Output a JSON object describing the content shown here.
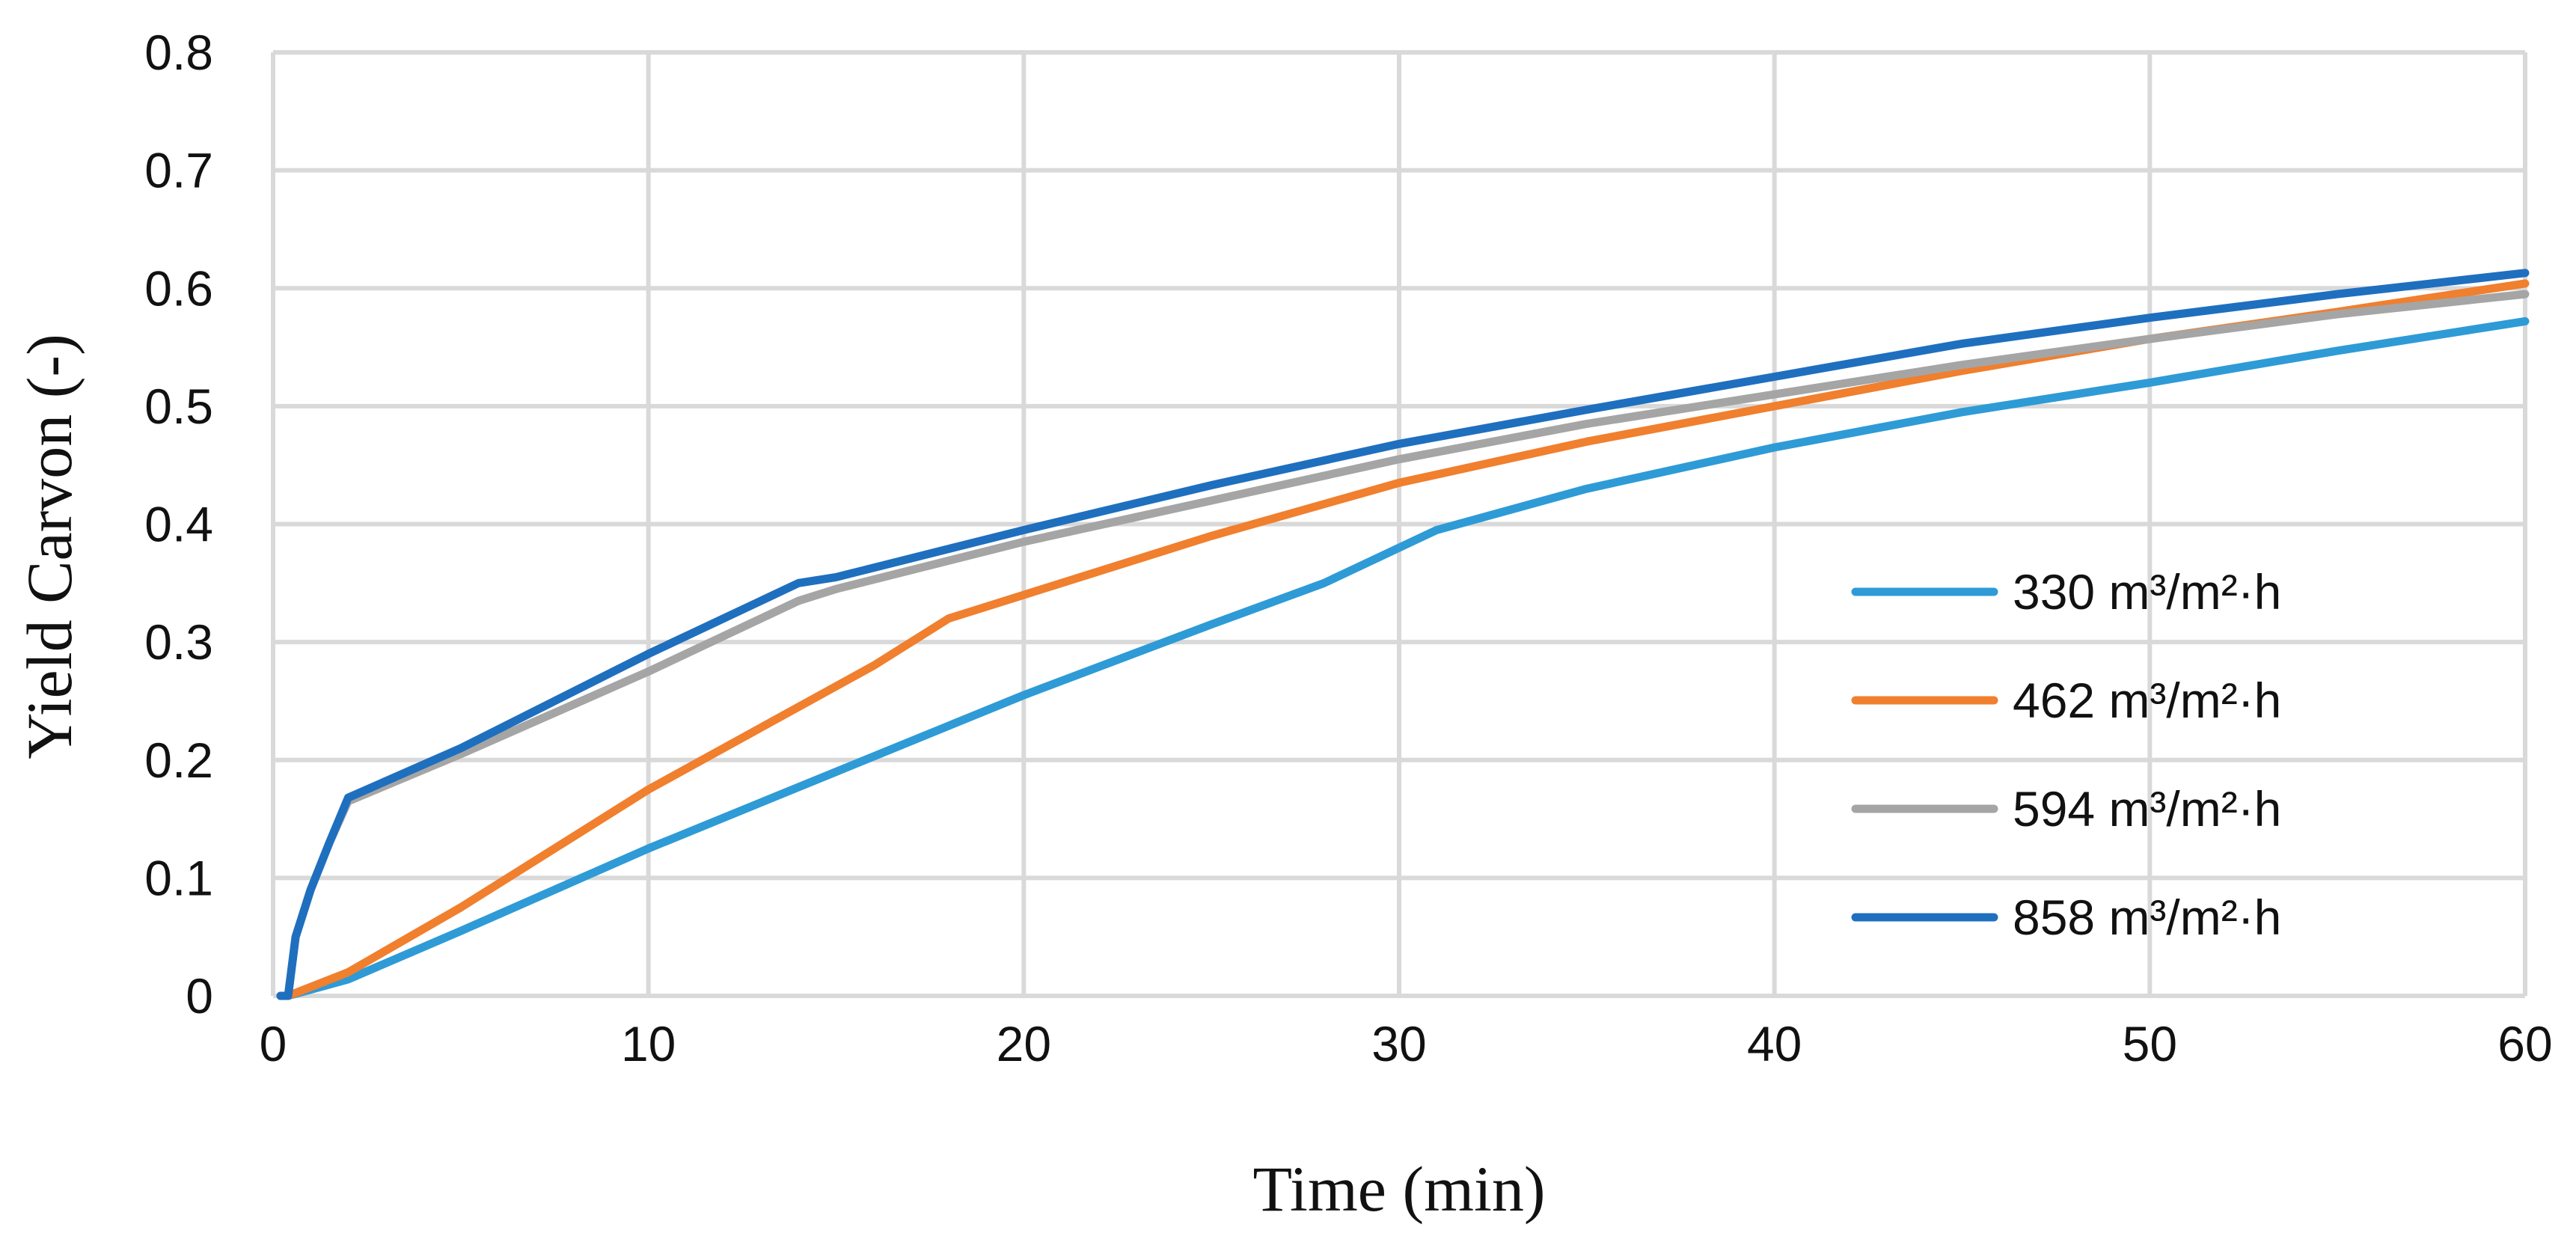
{
  "chart_data": {
    "type": "line",
    "title": "",
    "xlabel": "Time (min)",
    "ylabel": "Yield Carvon (-)",
    "xlim": [
      0,
      60
    ],
    "ylim": [
      0,
      0.8
    ],
    "xticks": [
      0,
      10,
      20,
      30,
      40,
      50,
      60
    ],
    "yticks": [
      0,
      0.1,
      0.2,
      0.3,
      0.4,
      0.5,
      0.6,
      0.7,
      0.8
    ],
    "xtick_labels": [
      "0",
      "10",
      "20",
      "30",
      "40",
      "50",
      "60"
    ],
    "ytick_labels": [
      "0",
      "0.1",
      "0.2",
      "0.3",
      "0.4",
      "0.5",
      "0.6",
      "0.7",
      "0.8"
    ],
    "grid": true,
    "legend_position": "right",
    "series": [
      {
        "name": "330 m³/m²·h",
        "color": "#2e9bd6",
        "x": [
          0.2,
          0.4,
          2,
          5,
          10,
          15,
          20,
          25,
          28,
          31,
          35,
          40,
          45,
          50,
          55,
          60
        ],
        "y": [
          0,
          0,
          0.014,
          0.055,
          0.125,
          0.19,
          0.255,
          0.315,
          0.35,
          0.395,
          0.43,
          0.465,
          0.495,
          0.52,
          0.547,
          0.572
        ]
      },
      {
        "name": "462 m³/m²·h",
        "color": "#f07f2e",
        "x": [
          0.2,
          0.4,
          2,
          5,
          10,
          14,
          16,
          18,
          20,
          25,
          30,
          35,
          40,
          45,
          50,
          55,
          60
        ],
        "y": [
          0,
          0,
          0.02,
          0.075,
          0.175,
          0.245,
          0.28,
          0.32,
          0.34,
          0.39,
          0.435,
          0.47,
          0.5,
          0.53,
          0.557,
          0.58,
          0.604
        ]
      },
      {
        "name": "594 m³/m²·h",
        "color": "#a5a5a5",
        "x": [
          0.2,
          0.4,
          0.6,
          1,
          1.5,
          2,
          5,
          10,
          14,
          15,
          20,
          25,
          30,
          35,
          40,
          45,
          50,
          55,
          60
        ],
        "y": [
          0,
          0,
          0.05,
          0.09,
          0.13,
          0.165,
          0.205,
          0.275,
          0.335,
          0.345,
          0.385,
          0.42,
          0.455,
          0.485,
          0.51,
          0.535,
          0.557,
          0.578,
          0.595
        ]
      },
      {
        "name": "858 m³/m²·h",
        "color": "#1f6fbf",
        "x": [
          0.2,
          0.4,
          0.6,
          1,
          1.5,
          2,
          5,
          10,
          14,
          15,
          20,
          25,
          30,
          35,
          40,
          45,
          50,
          55,
          60
        ],
        "y": [
          0,
          0,
          0.05,
          0.09,
          0.13,
          0.168,
          0.21,
          0.29,
          0.35,
          0.355,
          0.395,
          0.433,
          0.468,
          0.497,
          0.525,
          0.553,
          0.575,
          0.595,
          0.613
        ]
      }
    ]
  }
}
